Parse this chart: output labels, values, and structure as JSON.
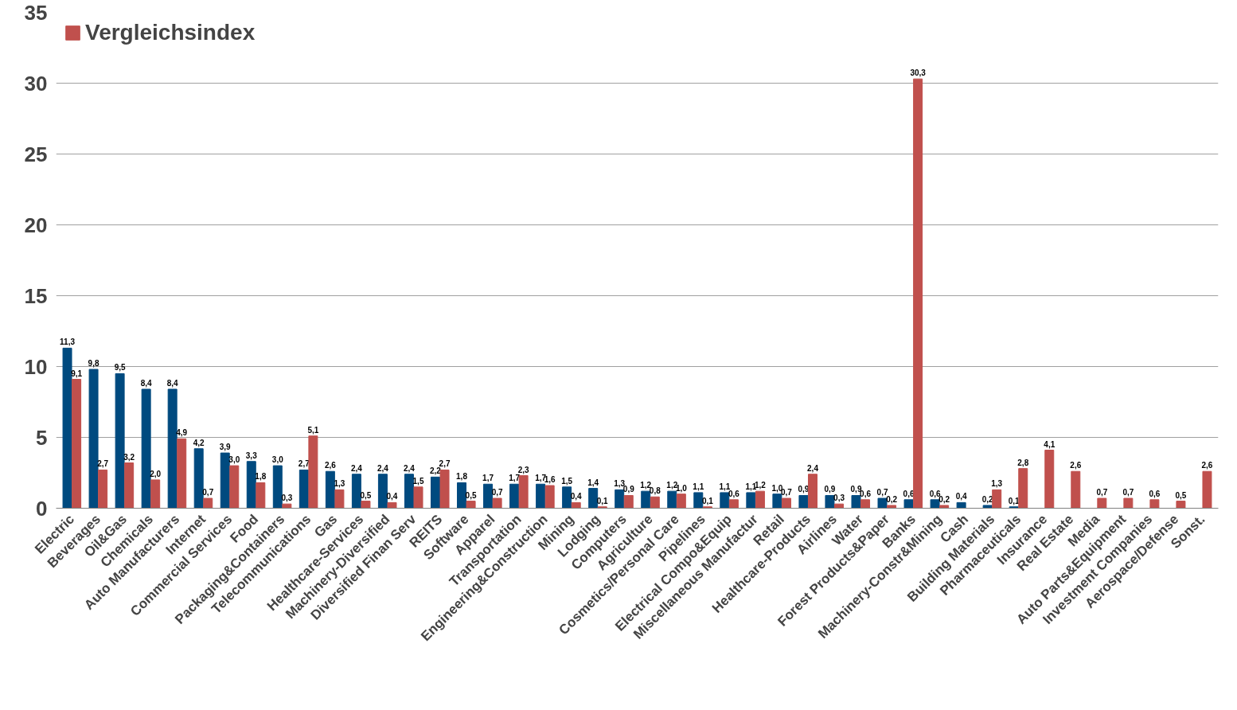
{
  "chart_data": {
    "type": "bar",
    "categories": [
      "Electric",
      "Beverages",
      "Oil&Gas",
      "Chemicals",
      "Auto Manufacturers",
      "Internet",
      "Commercial Services",
      "Food",
      "Packaging&Containers",
      "Telecommunications",
      "Gas",
      "Healthcare-Services",
      "Machinery-Diversified",
      "Diversified Finan Serv",
      "REITS",
      "Software",
      "Apparel",
      "Transportation",
      "Engineering&Construction",
      "Mining",
      "Lodging",
      "Computers",
      "Agriculture",
      "Cosmetics/Personal Care",
      "Pipelines",
      "Electrical Compo&Equip",
      "Miscellaneous Manufactur",
      "Retail",
      "Healthcare-Products",
      "Airlines",
      "Water",
      "Forest Products&Paper",
      "Banks",
      "Machinery-Constr&Mining",
      "Cash",
      "Building Materials",
      "Pharmaceuticals",
      "Insurance",
      "Real Estate",
      "Media",
      "Auto Parts&Equipment",
      "Investment Companies",
      "Aerospace/Defense",
      "Sonst."
    ],
    "series": [
      {
        "color": "#004a7f",
        "values": [
          11.3,
          9.8,
          9.5,
          8.4,
          8.4,
          4.2,
          3.9,
          3.3,
          3.0,
          2.7,
          2.6,
          2.4,
          2.4,
          2.4,
          2.2,
          1.8,
          1.7,
          1.7,
          1.7,
          1.5,
          1.4,
          1.3,
          1.2,
          1.2,
          1.1,
          1.1,
          1.1,
          1.0,
          0.9,
          0.9,
          0.9,
          0.7,
          0.6,
          0.6,
          0.4,
          0.2,
          0.1,
          null,
          null,
          null,
          null,
          null,
          null,
          null
        ],
        "value_labels": [
          "11,3",
          "9,8",
          "9,5",
          "8,4",
          "8,4",
          "4,2",
          "3,9",
          "3,3",
          "3,0",
          "2,7",
          "2,6",
          "2,4",
          "2,4",
          "2,4",
          "2,2",
          "1,8",
          "1,7",
          "1,7",
          "1,7",
          "1,5",
          "1,4",
          "1,3",
          "1,2",
          "1,2",
          "1,1",
          "1,1",
          "1,1",
          "1,0",
          "0,9",
          "0,9",
          "0,9",
          "0,7",
          "0,6",
          "0,6",
          "0,4",
          "0,2",
          "0,1",
          null,
          null,
          null,
          null,
          null,
          null,
          null
        ]
      },
      {
        "name": "Vergleichsindex",
        "color": "#c0504d",
        "values": [
          9.1,
          2.7,
          3.2,
          2.0,
          4.9,
          0.7,
          3.0,
          1.8,
          0.3,
          5.1,
          1.3,
          0.5,
          0.4,
          1.5,
          2.7,
          0.5,
          0.7,
          2.3,
          1.6,
          0.4,
          0.1,
          0.9,
          0.8,
          1.0,
          0.1,
          0.6,
          1.2,
          0.7,
          2.4,
          0.3,
          0.6,
          0.2,
          30.3,
          0.2,
          null,
          1.3,
          2.8,
          4.1,
          2.6,
          0.7,
          0.7,
          0.6,
          0.5,
          2.6
        ],
        "value_labels": [
          "9,1",
          "2,7",
          "3,2",
          "2,0",
          "4,9",
          "0,7",
          "3,0",
          "1,8",
          "0,3",
          "5,1",
          "1,3",
          "0,5",
          "0,4",
          "1,5",
          "2,7",
          "0,5",
          "0,7",
          "2,3",
          "1,6",
          "0,4",
          "0,1",
          "0,9",
          "0,8",
          "1,0",
          "0,1",
          "0,6",
          "1,2",
          "0,7",
          "2,4",
          "0,3",
          "0,6",
          "0,2",
          "30,3",
          "0,2",
          null,
          "1,3",
          "2,8",
          "4,1",
          "2,6",
          "0,7",
          "0,7",
          "0,6",
          "0,5",
          "2,6"
        ]
      }
    ],
    "ylim": [
      0,
      35
    ],
    "yticks": [
      0,
      5,
      10,
      15,
      20,
      25,
      30,
      35
    ],
    "grid": "y",
    "legend": "top left"
  }
}
